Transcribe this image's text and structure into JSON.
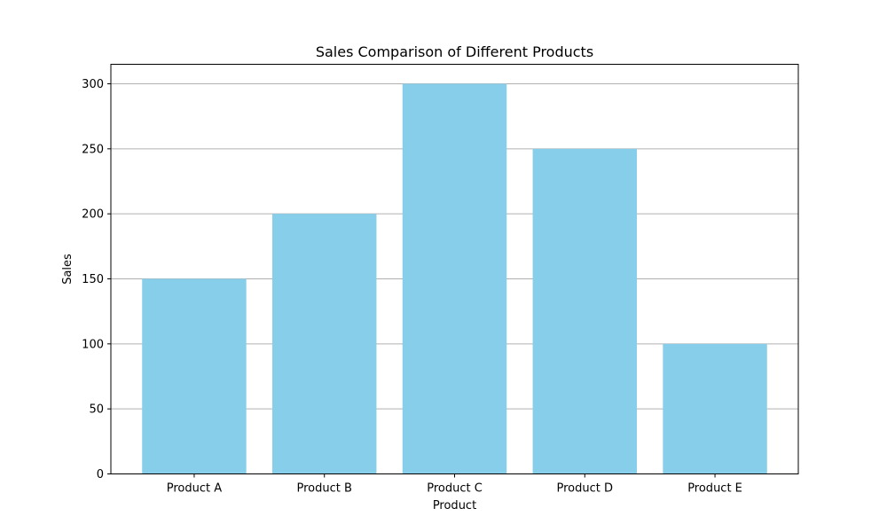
{
  "chart_data": {
    "type": "bar",
    "title": "Sales Comparison of Different Products",
    "xlabel": "Product",
    "ylabel": "Sales",
    "categories": [
      "Product A",
      "Product B",
      "Product C",
      "Product D",
      "Product E"
    ],
    "values": [
      150,
      200,
      300,
      250,
      100
    ],
    "ylim": [
      0,
      315
    ],
    "yticks": [
      0,
      50,
      100,
      150,
      200,
      250,
      300
    ],
    "grid": "y",
    "bar_color": "#87CEEB",
    "grid_color": "#b0b0b0"
  }
}
